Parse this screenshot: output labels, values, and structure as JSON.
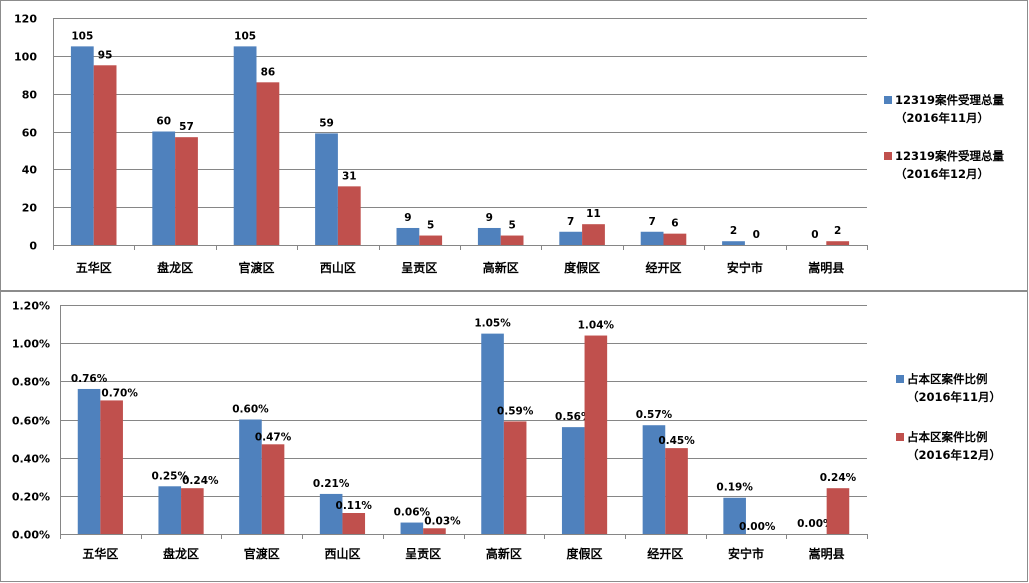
{
  "chart_data": [
    {
      "type": "bar",
      "categories": [
        "五华区",
        "盘龙区",
        "官渡区",
        "西山区",
        "呈贡区",
        "高新区",
        "度假区",
        "经开区",
        "安宁市",
        "嵩明县"
      ],
      "series": [
        {
          "name_line1": "12319案件受理总量",
          "name_line2": "（2016年11月）",
          "color": "#4f81bd",
          "values": [
            105,
            60,
            105,
            59,
            9,
            9,
            7,
            7,
            2,
            0
          ],
          "labels": [
            "105",
            "60",
            "105",
            "59",
            "9",
            "9",
            "7",
            "7",
            "2",
            "0"
          ]
        },
        {
          "name_line1": "12319案件受理总量",
          "name_line2": "（2016年12月）",
          "color": "#c0504d",
          "values": [
            95,
            57,
            86,
            31,
            5,
            5,
            11,
            6,
            0,
            2
          ],
          "labels": [
            "95",
            "57",
            "86",
            "31",
            "5",
            "5",
            "11",
            "6",
            "0",
            "2"
          ]
        }
      ],
      "ylim": [
        0,
        120
      ],
      "yticks": [
        "0",
        "20",
        "40",
        "60",
        "80",
        "100",
        "120"
      ],
      "grid": true,
      "legend": "right"
    },
    {
      "type": "bar",
      "categories": [
        "五华区",
        "盘龙区",
        "官渡区",
        "西山区",
        "呈贡区",
        "高新区",
        "度假区",
        "经开区",
        "安宁市",
        "嵩明县"
      ],
      "series": [
        {
          "name_line1": "占本区案件比例",
          "name_line2": "（2016年11月）",
          "color": "#4f81bd",
          "values": [
            0.76,
            0.25,
            0.6,
            0.21,
            0.06,
            1.05,
            0.56,
            0.57,
            0.19,
            0.0
          ],
          "labels": [
            "0.76%",
            "0.25%",
            "0.60%",
            "0.21%",
            "0.06%",
            "1.05%",
            "0.56%",
            "0.57%",
            "0.19%",
            "0.00%"
          ]
        },
        {
          "name_line1": "占本区案件比例",
          "name_line2": "（2016年12月）",
          "color": "#c0504d",
          "values": [
            0.7,
            0.24,
            0.47,
            0.11,
            0.03,
            0.59,
            1.04,
            0.45,
            0.0,
            0.24
          ],
          "labels": [
            "0.70%",
            "0.24%",
            "0.47%",
            "0.11%",
            "0.03%",
            "0.59%",
            "1.04%",
            "0.45%",
            "0.00%",
            "0.24%"
          ]
        }
      ],
      "ylim": [
        0,
        1.2
      ],
      "yticks": [
        "0.00%",
        "0.20%",
        "0.40%",
        "0.60%",
        "0.80%",
        "1.00%",
        "1.20%"
      ],
      "grid": true,
      "legend": "right"
    }
  ]
}
